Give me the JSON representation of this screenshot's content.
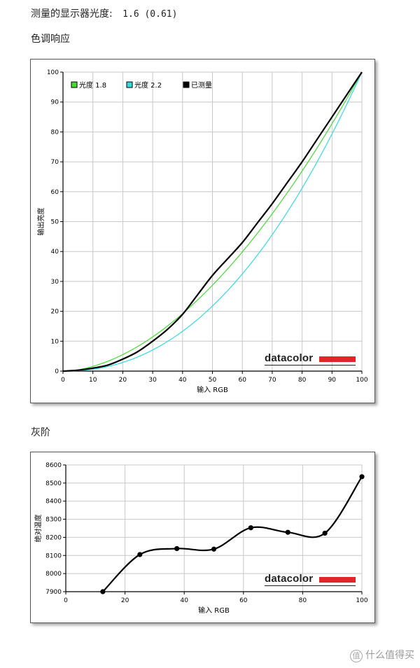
{
  "gamma_line": {
    "label": "测量的显示器光度:",
    "value": "1.6 (0.61)"
  },
  "sections": {
    "tone": "色调响应",
    "gray": "灰阶"
  },
  "watermark": {
    "icon": "值",
    "text": "什么值得买"
  },
  "brand": "datacolor",
  "colors": {
    "gamma18": "#44dd33",
    "gamma22": "#33dddd",
    "measured": "#000000",
    "brand_red": "#e0252b",
    "grid": "#c8c8c8"
  },
  "chart_data": [
    {
      "type": "line",
      "xlabel": "输入 RGB",
      "ylabel": "输出亮度",
      "xlim": [
        0,
        100
      ],
      "ylim": [
        0,
        100
      ],
      "xticks": [
        0,
        10,
        20,
        30,
        40,
        50,
        60,
        70,
        80,
        90,
        100
      ],
      "yticks": [
        0,
        10,
        20,
        30,
        40,
        50,
        60,
        70,
        80,
        90,
        100
      ],
      "grid": true,
      "legend_position": "top-left",
      "series": [
        {
          "name": "光度 1.8",
          "color": "#44dd33",
          "gamma": 1.8,
          "x": [
            0,
            10,
            20,
            30,
            40,
            50,
            60,
            70,
            80,
            90,
            100
          ],
          "y": [
            0,
            1.6,
            5.5,
            11.5,
            19.2,
            28.7,
            39.9,
            52.6,
            66.9,
            82.7,
            100
          ]
        },
        {
          "name": "光度 2.2",
          "color": "#33dddd",
          "gamma": 2.2,
          "x": [
            0,
            10,
            20,
            30,
            40,
            50,
            60,
            70,
            80,
            90,
            100
          ],
          "y": [
            0,
            0.6,
            2.9,
            7.1,
            13.3,
            21.8,
            32.5,
            45.6,
            61.2,
            79.3,
            100
          ]
        },
        {
          "name": "已测量",
          "color": "#000000",
          "x": [
            0,
            5,
            10,
            15,
            20,
            25,
            30,
            35,
            40,
            45,
            50,
            55,
            60,
            65,
            70,
            75,
            80,
            85,
            90,
            95,
            100
          ],
          "y": [
            0,
            0.3,
            1.0,
            2.0,
            4.0,
            6.5,
            10.0,
            14.0,
            19.0,
            25.5,
            32.0,
            37.5,
            43.0,
            49.5,
            56.0,
            63.0,
            70.0,
            77.5,
            85.0,
            92.5,
            100
          ]
        }
      ]
    },
    {
      "type": "line",
      "xlabel": "输入 RGB",
      "ylabel": "绝对温度",
      "xlim": [
        0,
        100
      ],
      "ylim": [
        7900,
        8600
      ],
      "xticks": [
        0,
        20,
        40,
        60,
        80,
        100
      ],
      "yticks": [
        7900,
        8000,
        8100,
        8200,
        8300,
        8400,
        8500,
        8600
      ],
      "grid": true,
      "series": [
        {
          "color": "#000000",
          "x": [
            12.5,
            25,
            37.5,
            50,
            62.5,
            75,
            87.5,
            100
          ],
          "y": [
            7900,
            8105,
            8138,
            8135,
            8253,
            8228,
            8223,
            8535
          ]
        }
      ]
    }
  ]
}
